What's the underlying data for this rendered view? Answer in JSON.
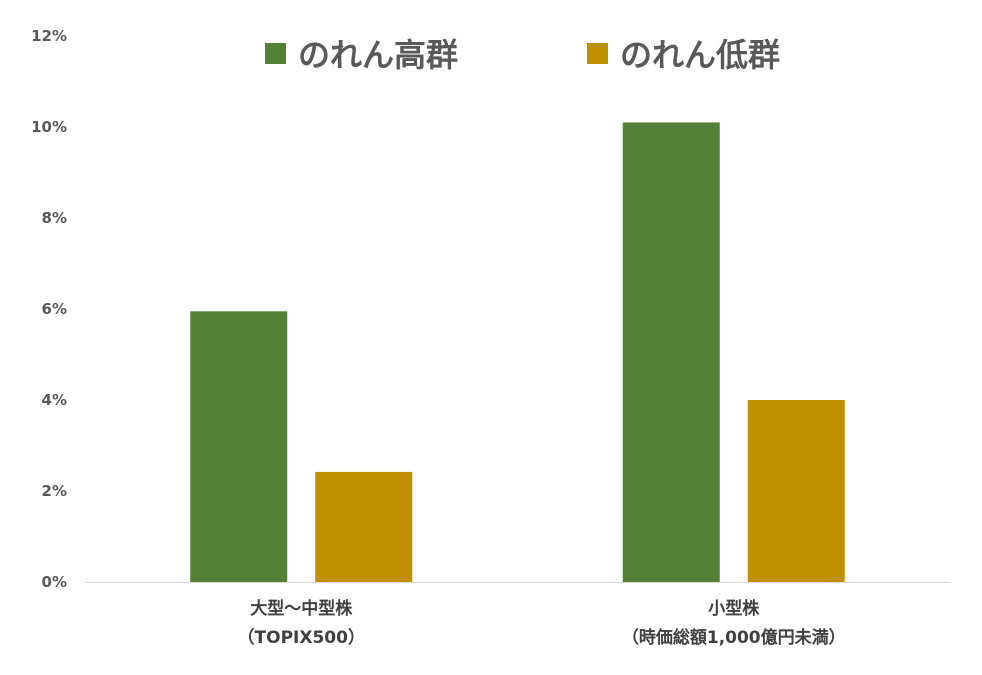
{
  "chart_data": {
    "type": "bar",
    "categories": [
      [
        "大型～中型株",
        "（TOPIX500）"
      ],
      [
        "小型株",
        "（時価総額1,000億円未満）"
      ]
    ],
    "series": [
      {
        "name": "のれん高群",
        "color": "#538135",
        "values": [
          5.95,
          10.1
        ]
      },
      {
        "name": "のれん低群",
        "color": "#BF9000",
        "values": [
          2.42,
          4.0
        ]
      }
    ],
    "yticks": [
      "0%",
      "2%",
      "4%",
      "6%",
      "8%",
      "10%",
      "12%"
    ],
    "ylim": [
      0,
      12
    ],
    "legend_position": "top",
    "grid": false,
    "axis_color": "#d9d9d9"
  }
}
